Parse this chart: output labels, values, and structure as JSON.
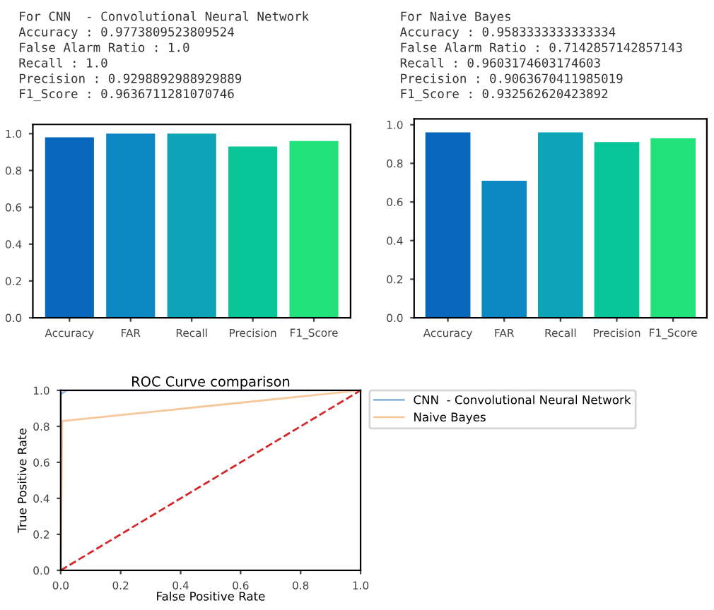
{
  "chart_data": [
    {
      "type": "bar",
      "title": "For CNN  - Convolutional Neural Network",
      "annotations": [
        "Accuracy : 0.9773809523809524",
        "False Alarm Ratio : 1.0",
        "Recall : 1.0",
        "Precision : 0.9298892988929889",
        "F1_Score : 0.9636711281070746"
      ],
      "categories": [
        "Accuracy",
        "FAR",
        "Recall",
        "Precision",
        "F1_Score"
      ],
      "values": [
        0.98,
        1.0,
        1.0,
        0.93,
        0.96
      ],
      "colors": [
        "#0866bb",
        "#0b88c4",
        "#0ca4b6",
        "#07c596",
        "#22e07a"
      ],
      "ylim": [
        0,
        1.05
      ],
      "yticks": [
        {
          "value": 0,
          "label": "0.0"
        },
        {
          "value": 0.2,
          "label": "0.2"
        },
        {
          "value": 0.4,
          "label": "0.4"
        },
        {
          "value": 0.6,
          "label": "0.6"
        },
        {
          "value": 0.8,
          "label": "0.8"
        },
        {
          "value": 1,
          "label": "1.0"
        }
      ],
      "grid": false
    },
    {
      "type": "bar",
      "title": "For Naive Bayes",
      "annotations": [
        "Accuracy : 0.9583333333333334",
        "False Alarm Ratio : 0.7142857142857143",
        "Recall : 0.9603174603174603",
        "Precision : 0.9063670411985019",
        "F1_Score : 0.932562620423892"
      ],
      "categories": [
        "Accuracy",
        "FAR",
        "Recall",
        "Precision",
        "F1_Score"
      ],
      "values": [
        0.96,
        0.71,
        0.96,
        0.91,
        0.93
      ],
      "colors": [
        "#0866bb",
        "#0b88c4",
        "#0ca4b6",
        "#07c596",
        "#22e07a"
      ],
      "ylim": [
        0,
        1.03
      ],
      "yticks": [
        {
          "value": 0,
          "label": "0.0"
        },
        {
          "value": 0.2,
          "label": "0.2"
        },
        {
          "value": 0.4,
          "label": "0.4"
        },
        {
          "value": 0.6,
          "label": "0.6"
        },
        {
          "value": 0.8,
          "label": "0.8"
        },
        {
          "value": 1,
          "label": "1.0"
        }
      ],
      "grid": false
    },
    {
      "type": "line",
      "title": "ROC Curve comparison",
      "xlabel": "False Positive Rate",
      "ylabel": "True Positive Rate",
      "series": [
        {
          "name": "CNN  - Convolutional Neural Network",
          "color": "#8fb8e0",
          "x": [
            0,
            0,
            0.02,
            1
          ],
          "values": [
            0,
            0.98,
            1,
            1
          ]
        },
        {
          "name": "Naive Bayes",
          "color": "#f5c79a",
          "x": [
            0,
            0.005,
            1
          ],
          "values": [
            0,
            0.83,
            1
          ]
        },
        {
          "color": "#d62728",
          "line_style": "dashed",
          "x": [
            0,
            1
          ],
          "values": [
            0,
            1
          ]
        }
      ],
      "xlim": [
        0,
        1
      ],
      "ylim": [
        0,
        1
      ],
      "xticks": [
        {
          "value": 0,
          "label": "0.0"
        },
        {
          "value": 0.2,
          "label": "0.2"
        },
        {
          "value": 0.4,
          "label": "0.4"
        },
        {
          "value": 0.6,
          "label": "0.6"
        },
        {
          "value": 0.8,
          "label": "0.8"
        },
        {
          "value": 1,
          "label": "1.0"
        }
      ],
      "yticks": [
        {
          "value": 0,
          "label": "0.0"
        },
        {
          "value": 0.2,
          "label": "0.2"
        },
        {
          "value": 0.4,
          "label": "0.4"
        },
        {
          "value": 0.6,
          "label": "0.6"
        },
        {
          "value": 0.8,
          "label": "0.8"
        },
        {
          "value": 1,
          "label": "1.0"
        }
      ],
      "legend": "top right",
      "grid": false
    }
  ]
}
